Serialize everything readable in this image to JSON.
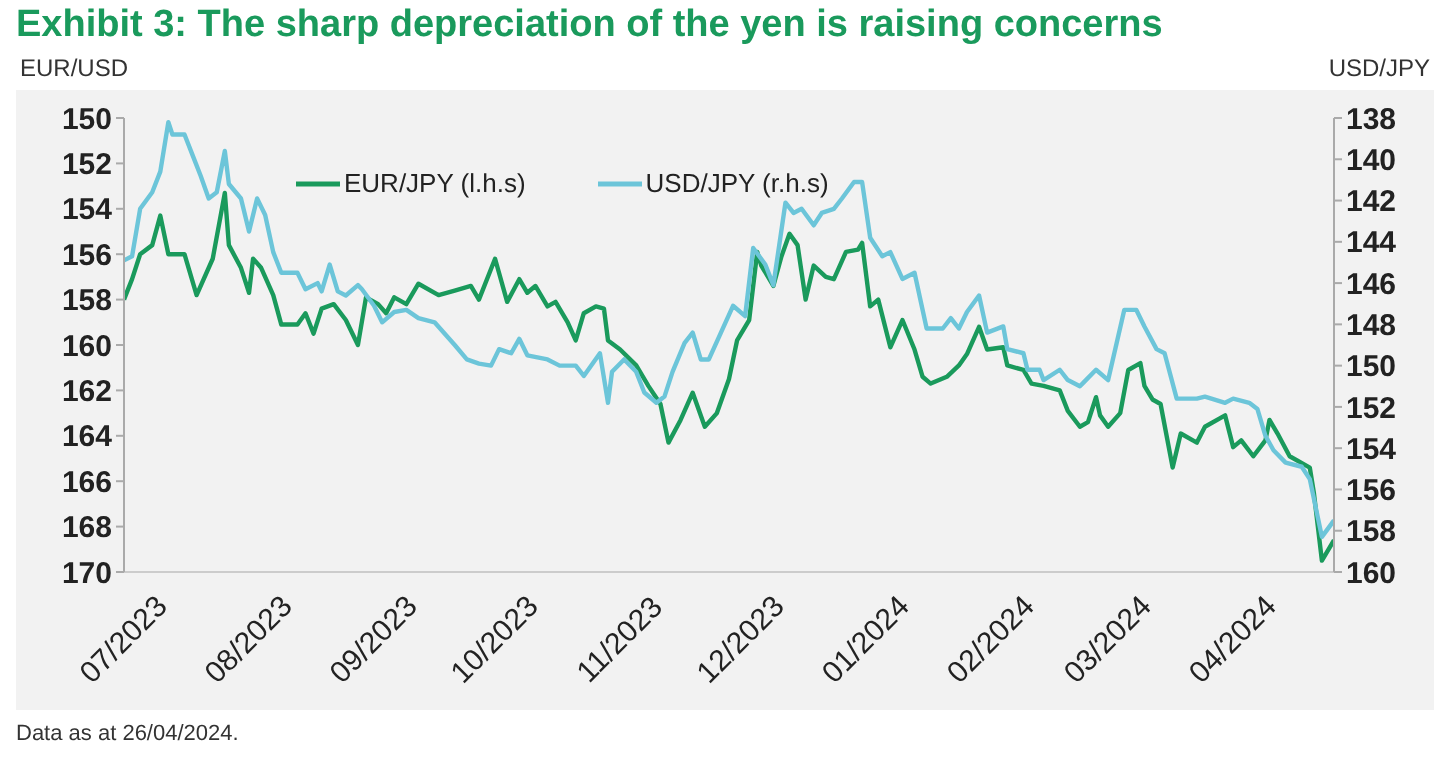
{
  "chart_data": {
    "type": "line",
    "title": "Exhibit 3: The sharp depreciation of the yen is raising concerns",
    "ylabel": "EUR/USD",
    "y2label": "USD/JPY",
    "xlim": [
      "2023-07-01",
      "2024-04-26"
    ],
    "xticks": [
      {
        "value": "2023-07-01",
        "label": "07/2023"
      },
      {
        "value": "2023-08-01",
        "label": "08/2023"
      },
      {
        "value": "2023-09-01",
        "label": "09/2023"
      },
      {
        "value": "2023-10-01",
        "label": "10/2023"
      },
      {
        "value": "2023-11-01",
        "label": "11/2023"
      },
      {
        "value": "2023-12-01",
        "label": "12/2023"
      },
      {
        "value": "2024-01-01",
        "label": "01/2024"
      },
      {
        "value": "2024-02-01",
        "label": "02/2024"
      },
      {
        "value": "2024-03-01",
        "label": "03/2024"
      },
      {
        "value": "2024-04-01",
        "label": "04/2024"
      }
    ],
    "ylim": [
      170,
      150
    ],
    "yticks": [
      150,
      152,
      154,
      156,
      158,
      160,
      162,
      164,
      166,
      168,
      170
    ],
    "y2lim": [
      160,
      138
    ],
    "y2ticks": [
      138,
      140,
      142,
      144,
      146,
      148,
      150,
      152,
      154,
      156,
      158,
      160
    ],
    "legend": "top",
    "marker": "none",
    "series": [
      {
        "name": "EUR/JPY (l.h.s)",
        "color": "#1a9a5c",
        "axis": "y",
        "x": [
          "2023-07-01",
          "2023-07-03",
          "2023-07-05",
          "2023-07-08",
          "2023-07-10",
          "2023-07-12",
          "2023-07-16",
          "2023-07-17",
          "2023-07-19",
          "2023-07-23",
          "2023-07-26",
          "2023-07-27",
          "2023-07-30",
          "2023-08-01",
          "2023-08-02",
          "2023-08-04",
          "2023-08-07",
          "2023-08-09",
          "2023-08-13",
          "2023-08-15",
          "2023-08-17",
          "2023-08-19",
          "2023-08-22",
          "2023-08-25",
          "2023-08-28",
          "2023-08-30",
          "2023-09-02",
          "2023-09-04",
          "2023-09-06",
          "2023-09-09",
          "2023-09-12",
          "2023-09-17",
          "2023-09-21",
          "2023-09-25",
          "2023-09-27",
          "2023-10-01",
          "2023-10-04",
          "2023-10-07",
          "2023-10-09",
          "2023-10-11",
          "2023-10-14",
          "2023-10-16",
          "2023-10-19",
          "2023-10-21",
          "2023-10-23",
          "2023-10-26",
          "2023-10-28",
          "2023-10-29",
          "2023-11-01",
          "2023-11-05",
          "2023-11-08",
          "2023-11-11",
          "2023-11-13",
          "2023-11-16",
          "2023-11-19",
          "2023-11-22",
          "2023-11-25",
          "2023-11-28",
          "2023-11-30",
          "2023-12-03",
          "2023-12-05",
          "2023-12-06",
          "2023-12-09",
          "2023-12-11",
          "2023-12-13",
          "2023-12-15",
          "2023-12-17",
          "2023-12-19",
          "2023-12-22",
          "2023-12-24",
          "2023-12-27",
          "2023-12-30",
          "2023-12-31",
          "2024-01-02",
          "2024-01-04",
          "2024-01-07",
          "2024-01-10",
          "2024-01-13",
          "2024-01-15",
          "2024-01-17",
          "2024-01-21",
          "2024-01-24",
          "2024-01-26",
          "2024-01-29",
          "2024-01-31",
          "2024-02-04",
          "2024-02-05",
          "2024-02-09",
          "2024-02-11",
          "2024-02-14",
          "2024-02-18",
          "2024-02-20",
          "2024-02-23",
          "2024-02-25",
          "2024-02-27",
          "2024-02-28",
          "2024-03-01",
          "2024-03-04",
          "2024-03-06",
          "2024-03-09",
          "2024-03-10",
          "2024-03-12",
          "2024-03-14",
          "2024-03-17",
          "2024-03-19",
          "2024-03-23",
          "2024-03-25",
          "2024-03-30",
          "2024-04-01",
          "2024-04-03",
          "2024-04-06",
          "2024-04-09",
          "2024-04-10",
          "2024-04-12",
          "2024-04-15",
          "2024-04-20",
          "2024-04-21",
          "2024-04-23",
          "2024-04-26"
        ],
        "values": [
          158.0,
          157.1,
          156.0,
          155.6,
          154.3,
          156.0,
          156.0,
          156.6,
          157.8,
          156.2,
          153.3,
          155.6,
          156.6,
          157.7,
          156.2,
          156.6,
          157.8,
          159.1,
          159.1,
          158.6,
          159.5,
          158.4,
          158.2,
          158.9,
          160.0,
          157.9,
          158.2,
          158.6,
          157.9,
          158.2,
          157.3,
          157.8,
          157.6,
          157.4,
          158.0,
          156.2,
          158.1,
          157.1,
          157.7,
          157.4,
          158.3,
          158.1,
          159.0,
          159.8,
          158.6,
          158.3,
          158.4,
          159.8,
          160.2,
          160.9,
          161.8,
          162.6,
          164.3,
          163.3,
          162.1,
          163.6,
          163.0,
          161.5,
          159.8,
          158.9,
          155.9,
          156.5,
          157.4,
          156.1,
          155.1,
          155.6,
          158.0,
          156.5,
          157.0,
          157.1,
          155.9,
          155.8,
          155.5,
          158.3,
          158.0,
          160.1,
          158.9,
          160.2,
          161.4,
          161.7,
          161.4,
          160.9,
          160.4,
          159.2,
          160.2,
          160.1,
          160.9,
          161.1,
          161.7,
          161.8,
          162.0,
          162.9,
          163.6,
          163.4,
          162.3,
          163.1,
          163.6,
          163.0,
          161.1,
          160.8,
          161.8,
          162.4,
          162.6,
          165.4,
          163.9,
          164.3,
          163.6,
          163.1,
          164.5,
          164.2,
          164.9,
          164.2,
          163.3,
          163.9,
          164.9,
          165.4,
          166.5,
          169.5,
          168.6
        ]
      },
      {
        "name": "USD/JPY (r.h.s)",
        "color": "#6cc5d9",
        "axis": "y2",
        "x": [
          "2023-07-01",
          "2023-07-03",
          "2023-07-05",
          "2023-07-08",
          "2023-07-10",
          "2023-07-12",
          "2023-07-13",
          "2023-07-16",
          "2023-07-18",
          "2023-07-20",
          "2023-07-22",
          "2023-07-24",
          "2023-07-26",
          "2023-07-27",
          "2023-07-30",
          "2023-08-01",
          "2023-08-03",
          "2023-08-05",
          "2023-08-07",
          "2023-08-09",
          "2023-08-13",
          "2023-08-15",
          "2023-08-18",
          "2023-08-19",
          "2023-08-21",
          "2023-08-23",
          "2023-08-25",
          "2023-08-28",
          "2023-08-29",
          "2023-09-01",
          "2023-09-03",
          "2023-09-06",
          "2023-09-09",
          "2023-09-12",
          "2023-09-16",
          "2023-09-21",
          "2023-09-24",
          "2023-09-27",
          "2023-09-30",
          "2023-10-02",
          "2023-10-05",
          "2023-10-07",
          "2023-10-09",
          "2023-10-14",
          "2023-10-17",
          "2023-10-21",
          "2023-10-23",
          "2023-10-27",
          "2023-10-29",
          "2023-10-30",
          "2023-11-02",
          "2023-11-05",
          "2023-11-07",
          "2023-11-10",
          "2023-11-12",
          "2023-11-14",
          "2023-11-17",
          "2023-11-19",
          "2023-11-21",
          "2023-11-23",
          "2023-11-26",
          "2023-11-29",
          "2023-12-02",
          "2023-12-04",
          "2023-12-07",
          "2023-12-09",
          "2023-12-12",
          "2023-12-14",
          "2023-12-16",
          "2023-12-19",
          "2023-12-21",
          "2023-12-24",
          "2023-12-26",
          "2023-12-29",
          "2023-12-31",
          "2024-01-02",
          "2024-01-05",
          "2024-01-07",
          "2024-01-10",
          "2024-01-13",
          "2024-01-16",
          "2024-01-20",
          "2024-01-22",
          "2024-01-24",
          "2024-01-26",
          "2024-01-29",
          "2024-01-31",
          "2024-02-04",
          "2024-02-05",
          "2024-02-09",
          "2024-02-10",
          "2024-02-13",
          "2024-02-14",
          "2024-02-18",
          "2024-02-20",
          "2024-02-23",
          "2024-02-24",
          "2024-02-27",
          "2024-03-01",
          "2024-03-05",
          "2024-03-08",
          "2024-03-10",
          "2024-03-13",
          "2024-03-15",
          "2024-03-18",
          "2024-03-23",
          "2024-03-25",
          "2024-03-30",
          "2024-04-01",
          "2024-04-05",
          "2024-04-07",
          "2024-04-09",
          "2024-04-11",
          "2024-04-14",
          "2024-04-18",
          "2024-04-20",
          "2024-04-23",
          "2024-04-26"
        ],
        "values": [
          144.9,
          144.7,
          142.4,
          141.6,
          140.6,
          138.2,
          138.8,
          138.8,
          139.8,
          140.8,
          141.9,
          141.6,
          139.6,
          141.2,
          141.9,
          143.5,
          141.9,
          142.7,
          144.5,
          145.5,
          145.5,
          146.3,
          146.0,
          146.4,
          145.1,
          146.4,
          146.6,
          146.1,
          146.3,
          147.1,
          147.9,
          147.4,
          147.3,
          147.7,
          147.9,
          149.0,
          149.7,
          149.9,
          150.0,
          149.2,
          149.4,
          148.7,
          149.5,
          149.7,
          150.0,
          150.0,
          150.5,
          149.4,
          151.8,
          150.3,
          149.7,
          150.3,
          151.3,
          151.8,
          151.5,
          150.3,
          148.9,
          148.4,
          149.7,
          149.7,
          148.4,
          147.1,
          147.6,
          144.3,
          145.1,
          146.1,
          142.1,
          142.6,
          142.4,
          143.2,
          142.6,
          142.4,
          141.9,
          141.1,
          141.1,
          143.8,
          144.7,
          144.5,
          145.8,
          145.5,
          148.2,
          148.2,
          147.7,
          148.2,
          147.4,
          146.6,
          148.4,
          148.1,
          149.2,
          149.4,
          150.2,
          150.2,
          150.7,
          150.2,
          150.7,
          151.0,
          150.8,
          150.2,
          150.7,
          147.3,
          147.3,
          148.1,
          149.2,
          149.4,
          151.6,
          151.6,
          151.5,
          151.8,
          151.6,
          151.8,
          152.1,
          153.4,
          154.1,
          154.7,
          154.9,
          155.5,
          158.3,
          157.5
        ]
      }
    ],
    "annotations": [
      "Data as at 26/04/2024."
    ]
  }
}
